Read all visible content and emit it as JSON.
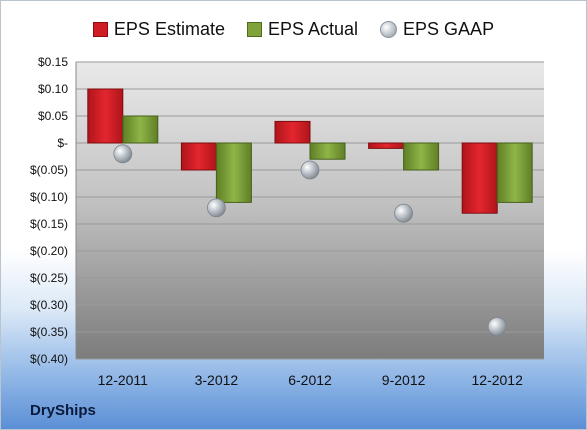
{
  "legend": {
    "estimate": "EPS Estimate",
    "actual": "EPS Actual",
    "gaap": "EPS GAAP"
  },
  "brand": "DryShips",
  "colors": {
    "estimate": "#d01c24",
    "actual": "#7fa33a",
    "gaap": "#aab2bb"
  },
  "chart_data": {
    "type": "bar",
    "categories": [
      "12-2011",
      "3-2012",
      "6-2012",
      "9-2012",
      "12-2012"
    ],
    "series": [
      {
        "name": "EPS Estimate",
        "values": [
          0.1,
          -0.05,
          0.04,
          -0.01,
          -0.13
        ]
      },
      {
        "name": "EPS Actual",
        "values": [
          0.05,
          -0.11,
          -0.03,
          -0.05,
          -0.11
        ]
      },
      {
        "name": "EPS GAAP",
        "values": [
          -0.02,
          -0.12,
          -0.05,
          -0.13,
          -0.34
        ]
      }
    ],
    "ylim": [
      -0.4,
      0.15
    ],
    "yticks": [
      0.15,
      0.1,
      0.05,
      0,
      -0.05,
      -0.1,
      -0.15,
      -0.2,
      -0.25,
      -0.3,
      -0.35,
      -0.4
    ],
    "ytick_labels": [
      "$0.15",
      "$0.10",
      "$0.05",
      "$-",
      "$(0.05)",
      "$(0.10)",
      "$(0.15)",
      "$(0.20)",
      "$(0.25)",
      "$(0.30)",
      "$(0.35)",
      "$(0.40)"
    ],
    "legend_position": "top",
    "grid": true
  }
}
